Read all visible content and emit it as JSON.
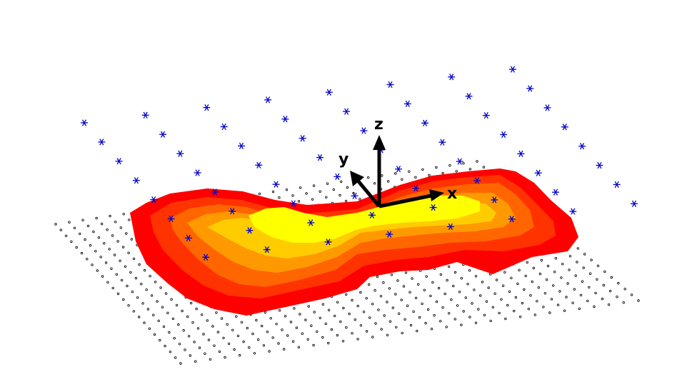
{
  "axes": {
    "x_label": "x",
    "y_label": "y",
    "z_label": "z"
  },
  "colors": {
    "background": "#ffffff",
    "markers": "#0000cc",
    "grid_dots": "#000000",
    "arrows": "#000000",
    "levels": [
      "#ff0000",
      "#ff3300",
      "#ff6600",
      "#ff9900",
      "#ffcc00",
      "#ffff00"
    ]
  },
  "marker_grid": {
    "rows": 8,
    "cols": 8,
    "symbol": "asterisk"
  },
  "ground_grid": {
    "rows": 25,
    "cols": 32,
    "symbol": "circle"
  },
  "surface": {
    "type": "layered heat map",
    "levels": 6
  }
}
